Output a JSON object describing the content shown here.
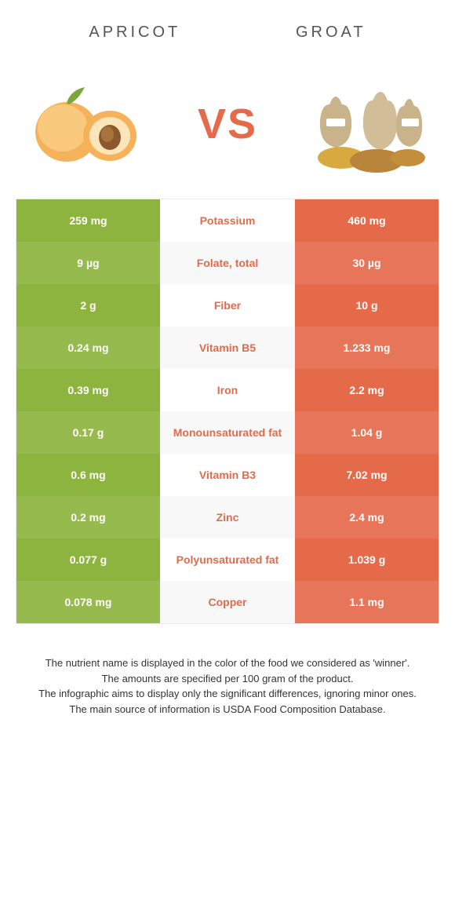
{
  "header": {
    "left_title": "Apricot",
    "right_title": "Groat",
    "vs_text": "VS"
  },
  "colors": {
    "left_primary": "#8eb440",
    "left_alt": "#97ba4e",
    "right_primary": "#e46a4a",
    "right_alt": "#e77559",
    "mid_bg_a": "#ffffff",
    "mid_bg_b": "#f8f8f8",
    "mid_text_left_win": "#8eb440",
    "mid_text_right_win": "#e46a4a",
    "header_text": "#555555",
    "border": "#e9e9e9"
  },
  "comparison": {
    "rows": [
      {
        "left": "259 mg",
        "nutrient": "Potassium",
        "right": "460 mg",
        "winner": "right"
      },
      {
        "left": "9 µg",
        "nutrient": "Folate, total",
        "right": "30 µg",
        "winner": "right"
      },
      {
        "left": "2 g",
        "nutrient": "Fiber",
        "right": "10 g",
        "winner": "right"
      },
      {
        "left": "0.24 mg",
        "nutrient": "Vitamin B5",
        "right": "1.233 mg",
        "winner": "right"
      },
      {
        "left": "0.39 mg",
        "nutrient": "Iron",
        "right": "2.2 mg",
        "winner": "right"
      },
      {
        "left": "0.17 g",
        "nutrient": "Monounsaturated fat",
        "right": "1.04 g",
        "winner": "right"
      },
      {
        "left": "0.6 mg",
        "nutrient": "Vitamin B3",
        "right": "7.02 mg",
        "winner": "right"
      },
      {
        "left": "0.2 mg",
        "nutrient": "Zinc",
        "right": "2.4 mg",
        "winner": "right"
      },
      {
        "left": "0.077 g",
        "nutrient": "Polyunsaturated fat",
        "right": "1.039 g",
        "winner": "right"
      },
      {
        "left": "0.078 mg",
        "nutrient": "Copper",
        "right": "1.1 mg",
        "winner": "right"
      }
    ]
  },
  "footer": {
    "line1": "The nutrient name is displayed in the color of the food we considered as 'winner'.",
    "line2": "The amounts are specified per 100 gram of the product.",
    "line3": "The infographic aims to display only the significant differences, ignoring minor ones.",
    "line4": "The main source of information is USDA Food Composition Database."
  }
}
